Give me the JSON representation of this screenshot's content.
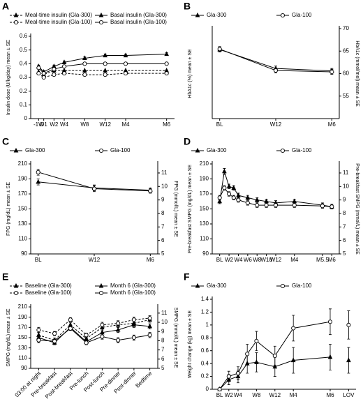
{
  "chart_data": [
    {
      "type": "line",
      "label": "A",
      "y_label": "Insulin dose (U/kg/day) mean ± SE",
      "x": [
        -1,
        0,
        2,
        4,
        8,
        12,
        16,
        24
      ],
      "xlim": [
        -2,
        25
      ],
      "xticks": [
        {
          "value": -1,
          "label": "-1W"
        },
        {
          "value": 0,
          "label": "D1"
        },
        {
          "value": 2,
          "label": "W2"
        },
        {
          "value": 4,
          "label": "W4"
        },
        {
          "value": 8,
          "label": "W8"
        },
        {
          "value": 12,
          "label": "W12"
        },
        {
          "value": 16,
          "label": "M4"
        },
        {
          "value": 24,
          "label": "M6"
        }
      ],
      "ylim": [
        0,
        0.6
      ],
      "yticks": [
        0,
        0.1,
        0.2,
        0.3,
        0.4,
        0.5,
        0.6
      ],
      "series": [
        {
          "name": "Meal-time insulin (Gla-300)",
          "color": "#000000",
          "marker": "triangle",
          "filled": true,
          "style": "dashed",
          "values": [
            0.34,
            0.32,
            0.35,
            0.35,
            0.35,
            0.35,
            0.35,
            0.35
          ]
        },
        {
          "name": "Basal insulin (Gla-300)",
          "color": "#000000",
          "marker": "triangle",
          "filled": true,
          "style": "solid",
          "values": [
            0.38,
            0.34,
            0.38,
            0.41,
            0.44,
            0.46,
            0.46,
            0.47
          ],
          "errors": [
            0.01,
            0.01,
            0.01,
            0.01,
            0.01,
            0.01,
            0.01,
            0.01
          ]
        },
        {
          "name": "Meal-time insulin (Gla-100)",
          "color": "#000000",
          "marker": "circle",
          "filled": false,
          "style": "dashed",
          "values": [
            0.33,
            0.3,
            0.32,
            0.33,
            0.32,
            0.32,
            0.33,
            0.33
          ]
        },
        {
          "name": "Basal insulin (Gla-100)",
          "color": "#000000",
          "marker": "circle",
          "filled": false,
          "style": "solid",
          "values": [
            0.37,
            0.33,
            0.36,
            0.38,
            0.4,
            0.4,
            0.4,
            0.4
          ]
        }
      ]
    },
    {
      "type": "line",
      "label": "B",
      "y_label": "HbA1c (%) mean ± SE",
      "y2_label": "HbA1c (mmol/mol) mean ± SE",
      "x": [
        0,
        12,
        24
      ],
      "xlim": [
        -1,
        25
      ],
      "xticks": [
        {
          "value": 0,
          "label": "BL"
        },
        {
          "value": 12,
          "label": "W12"
        },
        {
          "value": 24,
          "label": "M6"
        }
      ],
      "ylim": [
        6.7,
        8.55
      ],
      "y2lim": [
        50,
        70
      ],
      "y2ticks": [
        55,
        60,
        65,
        70
      ],
      "series": [
        {
          "name": "Gla-300",
          "color": "#000000",
          "marker": "triangle",
          "filled": true,
          "style": "solid",
          "values": [
            8.12,
            7.73,
            7.68
          ],
          "errors": [
            0.05,
            0.05,
            0.05
          ]
        },
        {
          "name": "Gla-100",
          "color": "#000000",
          "marker": "circle",
          "filled": false,
          "style": "solid",
          "values": [
            8.13,
            7.69,
            7.66
          ],
          "errors": [
            0.05,
            0.05,
            0.05
          ]
        }
      ]
    },
    {
      "type": "line",
      "label": "C",
      "y_label": "FPG (mg/dL) mean ± SE",
      "y2_label": "FPG (mmol/L) mean ± SE",
      "x": [
        0,
        12,
        24
      ],
      "xlim": [
        -1,
        25
      ],
      "xticks": [
        {
          "value": 0,
          "label": "BL"
        },
        {
          "value": 12,
          "label": "W12"
        },
        {
          "value": 24,
          "label": "M6"
        }
      ],
      "ylim": [
        90,
        210
      ],
      "yticks": [
        90,
        110,
        130,
        150,
        170,
        190,
        210
      ],
      "y2lim": [
        5,
        11.67
      ],
      "y2ticks": [
        5,
        6,
        7,
        8,
        9,
        10,
        11
      ],
      "series": [
        {
          "name": "Gla-300",
          "color": "#000000",
          "marker": "triangle",
          "filled": true,
          "style": "solid",
          "values": [
            186,
            178,
            175
          ],
          "errors": [
            4,
            4,
            3
          ]
        },
        {
          "name": "Gla-100",
          "color": "#000000",
          "marker": "circle",
          "filled": false,
          "style": "solid",
          "values": [
            199,
            177,
            174
          ],
          "errors": [
            4,
            4,
            3
          ]
        }
      ]
    },
    {
      "type": "line",
      "label": "D",
      "y_label": "Pre-breakfast SMPG (mg/dL) mean ± SE",
      "y2_label": "Pre-breakfast SMPG (mmol/L) mean ± SE",
      "x": [
        0,
        1,
        2,
        3,
        4,
        6,
        8,
        10,
        12,
        16,
        22,
        24
      ],
      "xlim": [
        -1,
        25
      ],
      "xticks": [
        {
          "value": 0,
          "label": "BL"
        },
        {
          "value": 2,
          "label": "W2"
        },
        {
          "value": 4,
          "label": "W4"
        },
        {
          "value": 6,
          "label": "W6"
        },
        {
          "value": 8,
          "label": "W8"
        },
        {
          "value": 10,
          "label": "W10"
        },
        {
          "value": 12,
          "label": "W12"
        },
        {
          "value": 16,
          "label": "M4"
        },
        {
          "value": 22,
          "label": "M5.5"
        },
        {
          "value": 24,
          "label": "M6"
        }
      ],
      "ylim": [
        90,
        210
      ],
      "yticks": [
        90,
        110,
        130,
        150,
        170,
        190,
        210
      ],
      "y2lim": [
        5,
        11.67
      ],
      "y2ticks": [
        5,
        6,
        7,
        8,
        9,
        10,
        11
      ],
      "series": [
        {
          "name": "Gla-300",
          "color": "#000000",
          "marker": "triangle",
          "filled": true,
          "style": "solid",
          "values": [
            160,
            200,
            180,
            178,
            168,
            165,
            162,
            160,
            158,
            160,
            155,
            153
          ],
          "errors": [
            3,
            4,
            3,
            3,
            3,
            3,
            3,
            3,
            3,
            3,
            3,
            3
          ]
        },
        {
          "name": "Gla-100",
          "color": "#000000",
          "marker": "circle",
          "filled": false,
          "style": "solid",
          "values": [
            165,
            178,
            170,
            165,
            162,
            158,
            155,
            155,
            155,
            155,
            154,
            153
          ],
          "errors": [
            3,
            3,
            3,
            3,
            3,
            3,
            3,
            3,
            3,
            3,
            3,
            3
          ]
        }
      ]
    },
    {
      "type": "line",
      "label": "E",
      "y_label": "SMPG (mg/dL) mean ± SE",
      "y2_label": "SMPG (mmol/L) mean ± SE",
      "categories": [
        "03:00 at night",
        "Pre-breakfast",
        "Post-breakfast",
        "Pre-lunch",
        "Post-lunch",
        "Pre-dinner",
        "Post-dinner",
        "Bedtime"
      ],
      "ylim": [
        90,
        210
      ],
      "yticks": [
        90,
        110,
        130,
        150,
        170,
        190,
        210
      ],
      "y2lim": [
        5,
        11.67
      ],
      "y2ticks": [
        5,
        6,
        7,
        8,
        9,
        10,
        11
      ],
      "series": [
        {
          "name": "Baseline (Gla-300)",
          "color": "#000000",
          "marker": "triangle",
          "filled": true,
          "style": "dashed",
          "values": [
            155,
            145,
            175,
            148,
            170,
            175,
            178,
            185
          ],
          "errors": [
            5,
            4,
            4,
            4,
            5,
            5,
            5,
            5
          ]
        },
        {
          "name": "Month 6 (Gla-300)",
          "color": "#000000",
          "marker": "triangle",
          "filled": true,
          "style": "solid",
          "values": [
            150,
            140,
            170,
            142,
            160,
            165,
            175,
            172
          ],
          "errors": [
            5,
            4,
            4,
            4,
            5,
            5,
            5,
            5
          ]
        },
        {
          "name": "Baseline (Gla-100)",
          "color": "#000000",
          "marker": "circle",
          "filled": false,
          "style": "dashed",
          "values": [
            165,
            158,
            185,
            155,
            175,
            178,
            185,
            188
          ],
          "errors": [
            5,
            4,
            4,
            4,
            5,
            5,
            5,
            5
          ]
        },
        {
          "name": "Month 6 (Gla-100)",
          "color": "#000000",
          "marker": "circle",
          "filled": false,
          "style": "solid",
          "values": [
            145,
            143,
            168,
            140,
            152,
            145,
            150,
            155
          ],
          "errors": [
            5,
            4,
            4,
            4,
            5,
            5,
            5,
            5
          ]
        }
      ]
    },
    {
      "type": "line",
      "label": "F",
      "y_label": "Weight change (kg) mean ± SE",
      "x": [
        0,
        2,
        4,
        6,
        8,
        12,
        16,
        24,
        26,
        28
      ],
      "xlim": [
        -1,
        29
      ],
      "xticks": [
        {
          "value": 0,
          "label": "BL"
        },
        {
          "value": 2,
          "label": "W2"
        },
        {
          "value": 4,
          "label": "W4"
        },
        {
          "value": 8,
          "label": "W8"
        },
        {
          "value": 12,
          "label": "W12"
        },
        {
          "value": 16,
          "label": "M4"
        },
        {
          "value": 24,
          "label": "M6"
        },
        {
          "value": 28,
          "label": "LOV"
        }
      ],
      "ylim": [
        0,
        1.4
      ],
      "yticks": [
        0,
        0.2,
        0.4,
        0.6,
        0.8,
        1.0,
        1.2,
        1.4
      ],
      "series": [
        {
          "name": "Gla-300",
          "color": "#000000",
          "marker": "triangle",
          "filled": true,
          "style": "solid",
          "values": [
            0,
            0.15,
            0.2,
            0.4,
            0.42,
            0.35,
            0.45,
            0.5,
            null,
            0.45
          ],
          "errors": [
            0,
            0.08,
            0.1,
            0.15,
            0.15,
            0.15,
            0.2,
            0.2,
            null,
            0.2
          ]
        },
        {
          "name": "Gla-100",
          "color": "#000000",
          "marker": "circle",
          "filled": false,
          "style": "solid",
          "values": [
            0,
            0.2,
            0.25,
            0.55,
            0.75,
            0.52,
            0.95,
            1.05,
            null,
            1.0
          ],
          "errors": [
            0,
            0.08,
            0.1,
            0.15,
            0.15,
            0.15,
            0.2,
            0.2,
            null,
            0.22
          ]
        }
      ]
    }
  ]
}
